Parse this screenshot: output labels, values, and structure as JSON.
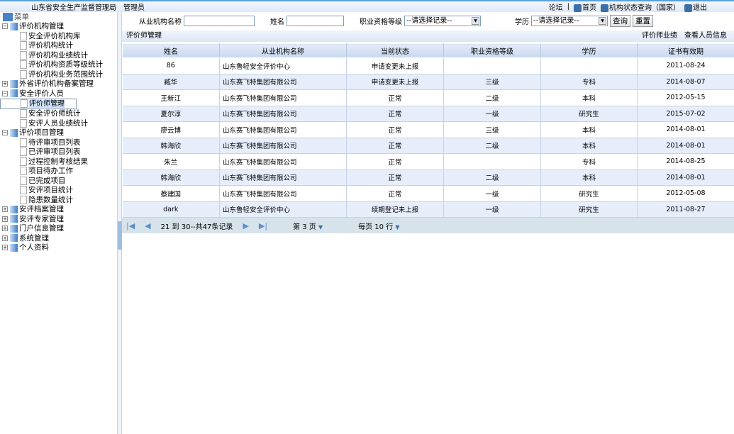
{
  "header": {
    "org": "山东省安全生产监督管理局",
    "role": "管理员",
    "links": [
      {
        "label": "论坛",
        "icon": ""
      },
      {
        "label": "首页",
        "icon": "home-icon"
      },
      {
        "label": "机构状态查询（国家）",
        "icon": "search-icon"
      },
      {
        "label": "退出",
        "icon": "logout-icon"
      }
    ],
    "sep": "|"
  },
  "sidebar": {
    "root": "菜单",
    "groups": [
      {
        "label": "评价机构管理",
        "expanded": true,
        "items": [
          "安全评价机构库",
          "评价机构统计",
          "评价机构业绩统计",
          "评价机构资质等级统计",
          "评价机构业务范围统计"
        ]
      },
      {
        "label": "外省评价机构备案管理",
        "expanded": false,
        "items": []
      },
      {
        "label": "安全评价人员",
        "expanded": true,
        "items": [
          "评价师管理",
          "安全评价师统计",
          "安评人员业绩统计"
        ]
      },
      {
        "label": "评价项目管理",
        "expanded": true,
        "items": [
          "待评审项目列表",
          "已评审项目列表",
          "过程控制考核结果",
          "项目待办工作",
          "已完成项目",
          "安评项目统计",
          "隐患数量统计"
        ]
      },
      {
        "label": "安评档案管理",
        "expanded": false,
        "items": []
      },
      {
        "label": "安评专家管理",
        "expanded": false,
        "items": []
      },
      {
        "label": "门户信息管理",
        "expanded": false,
        "items": []
      },
      {
        "label": "系统管理",
        "expanded": false,
        "items": []
      },
      {
        "label": "个人资料",
        "expanded": false,
        "items": []
      }
    ],
    "selected": "评价师管理"
  },
  "filters": {
    "org_label": "从业机构名称",
    "org_value": "",
    "name_label": "姓名",
    "name_value": "",
    "level_label": "职业资格等级",
    "level_value": "--请选择记录--",
    "edu_label": "学历",
    "edu_value": "--请选择记录--",
    "query": "查询",
    "reset": "重置"
  },
  "section": {
    "title": "评价师管理",
    "actions": [
      "评价师业绩",
      "查看人员信息"
    ]
  },
  "table": {
    "columns": [
      "姓名",
      "从业机构名称",
      "当前状态",
      "职业资格等级",
      "学历",
      "证书有效期"
    ],
    "rows": [
      [
        "86",
        "山东鲁轻安全评价中心",
        "申请变更未上报",
        "",
        "",
        "2011-08-24"
      ],
      [
        "臧华",
        "山东赛飞特集团有限公司",
        "申请变更未上报",
        "三级",
        "专科",
        "2014-08-07"
      ],
      [
        "王新江",
        "山东赛飞特集团有限公司",
        "正常",
        "二级",
        "本科",
        "2012-05-15"
      ],
      [
        "夏尔淳",
        "山东赛飞特集团有限公司",
        "正常",
        "一级",
        "研究生",
        "2015-07-02"
      ],
      [
        "廖云博",
        "山东赛飞特集团有限公司",
        "正常",
        "三级",
        "本科",
        "2014-08-01"
      ],
      [
        "韩海欣",
        "山东赛飞特集团有限公司",
        "正常",
        "二级",
        "本科",
        "2014-08-01"
      ],
      [
        "朱兰",
        "山东赛飞特集团有限公司",
        "正常",
        "",
        "专科",
        "2014-08-25"
      ],
      [
        "韩海欣",
        "山东赛飞特集团有限公司",
        "正常",
        "二级",
        "本科",
        "2014-08-01"
      ],
      [
        "蔡建国",
        "山东赛飞特集团有限公司",
        "正常",
        "一级",
        "研究生",
        "2012-05-08"
      ],
      [
        "dark",
        "山东鲁轻安全评价中心",
        "续期登记未上报",
        "一级",
        "研究生",
        "2011-08-27"
      ]
    ]
  },
  "pager": {
    "range": "21 到 30--共47条记录",
    "page": "第 3 页",
    "per_page": "每页 10 行"
  }
}
